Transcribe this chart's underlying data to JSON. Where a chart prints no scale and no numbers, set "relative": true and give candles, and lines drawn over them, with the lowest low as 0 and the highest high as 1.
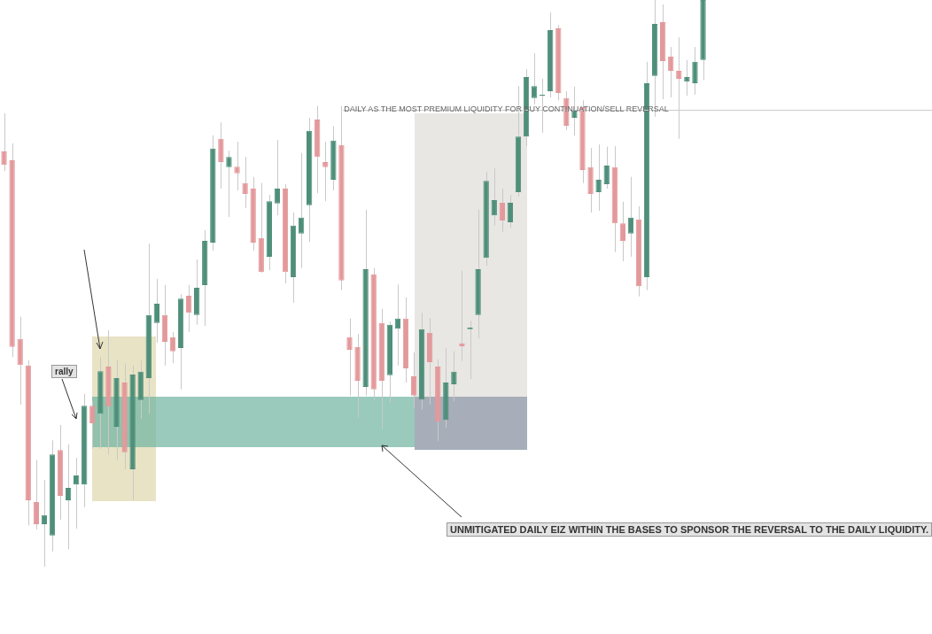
{
  "chart_data": {
    "type": "candlestick",
    "relative": true,
    "legend": false,
    "categories": [
      null,
      null,
      null,
      null,
      null,
      null,
      null,
      null,
      null,
      null,
      null,
      null,
      null,
      null,
      null,
      null,
      null,
      null,
      null,
      null,
      null,
      null,
      null,
      null,
      null,
      null,
      null,
      null,
      null,
      null,
      null,
      null,
      null,
      null,
      null,
      null,
      null,
      null,
      null,
      null,
      null,
      null,
      null,
      null,
      null,
      null,
      null,
      null,
      null,
      null,
      null,
      null,
      null,
      null,
      null,
      null,
      null,
      null,
      null,
      null,
      null,
      null,
      null,
      null,
      null,
      null,
      null,
      null,
      null,
      null,
      null,
      null,
      null,
      null,
      null,
      null,
      null,
      null,
      null,
      null,
      null,
      null,
      null,
      null,
      null,
      null,
      null,
      null,
      null,
      null,
      null,
      null,
      null,
      null,
      null,
      null,
      null,
      null,
      null,
      null,
      null,
      null,
      null,
      null,
      null,
      null,
      null,
      null,
      null,
      null,
      null,
      null,
      null,
      null,
      null,
      null
    ],
    "ohlc": [
      [
        0.733,
        0.8,
        0.698,
        0.709
      ],
      [
        0.717,
        0.747,
        0.37,
        0.388
      ],
      [
        0.402,
        0.441,
        0.286,
        0.356
      ],
      [
        0.355,
        0.364,
        0.073,
        0.117
      ],
      [
        0.114,
        0.188,
        0.066,
        0.075
      ],
      [
        0.075,
        0.153,
        0,
        0.091
      ],
      [
        0.055,
        0.223,
        0.027,
        0.198
      ],
      [
        0.206,
        0.25,
        0.083,
        0.125
      ],
      [
        0.117,
        0.216,
        0.031,
        0.139
      ],
      [
        0.145,
        0.192,
        0.067,
        0.161
      ],
      [
        0.145,
        0.305,
        0.105,
        0.284
      ],
      [
        0.284,
        0.292,
        0.208,
        0.253
      ],
      [
        0.27,
        0.37,
        0.208,
        0.345
      ],
      [
        0.353,
        0.417,
        0.198,
        0.283
      ],
      [
        0.247,
        0.364,
        0.188,
        0.333
      ],
      [
        0.325,
        0.359,
        0.172,
        0.202
      ],
      [
        0.172,
        0.355,
        0.117,
        0.339
      ],
      [
        0.294,
        0.364,
        0.261,
        0.344
      ],
      [
        0.333,
        0.57,
        0.27,
        0.444
      ],
      [
        0.43,
        0.508,
        0.395,
        0.464
      ],
      [
        0.444,
        0.497,
        0.355,
        0.397
      ],
      [
        0.405,
        0.414,
        0.359,
        0.38
      ],
      [
        0.386,
        0.481,
        0.313,
        0.473
      ],
      [
        0.478,
        0.497,
        0.414,
        0.448
      ],
      [
        0.444,
        0.542,
        0.427,
        0.492
      ],
      [
        0.497,
        0.594,
        0.425,
        0.575
      ],
      [
        0.572,
        0.761,
        0.558,
        0.738
      ],
      [
        0.755,
        0.784,
        0.667,
        0.714
      ],
      [
        0.705,
        0.734,
        0.617,
        0.723
      ],
      [
        0.706,
        0.75,
        0.664,
        0.694
      ],
      [
        0.677,
        0.723,
        0.633,
        0.658
      ],
      [
        0.667,
        0.688,
        0.558,
        0.572
      ],
      [
        0.58,
        0.677,
        0.519,
        0.52
      ],
      [
        0.547,
        0.656,
        0.523,
        0.645
      ],
      [
        0.641,
        0.753,
        0.62,
        0.667
      ],
      [
        0.667,
        0.675,
        0.5,
        0.52
      ],
      [
        0.511,
        0.625,
        0.466,
        0.602
      ],
      [
        0.588,
        0.73,
        0.527,
        0.616
      ],
      [
        0.638,
        0.792,
        0.573,
        0.769
      ],
      [
        0.789,
        0.813,
        0.659,
        0.723
      ],
      [
        0.714,
        0.75,
        0.645,
        0.705
      ],
      [
        0.683,
        0.777,
        0.664,
        0.752
      ],
      [
        0.744,
        0.813,
        0.488,
        0.505
      ],
      [
        0.405,
        0.438,
        0.302,
        0.383
      ],
      [
        0.388,
        0.411,
        0.263,
        0.328
      ],
      [
        0.317,
        0.63,
        0.302,
        0.525
      ],
      [
        0.516,
        0.527,
        0.294,
        0.313
      ],
      [
        0.43,
        0.455,
        0.242,
        0.328
      ],
      [
        0.338,
        0.433,
        0.289,
        0.427
      ],
      [
        0.42,
        0.498,
        0.355,
        0.438
      ],
      [
        0.438,
        0.475,
        0.325,
        0.35
      ],
      [
        0.336,
        0.378,
        0.281,
        0.302
      ],
      [
        0.295,
        0.448,
        0.277,
        0.419
      ],
      [
        0.413,
        0.439,
        0.286,
        0.361
      ],
      [
        0.353,
        0.366,
        0.222,
        0.256
      ],
      [
        0.259,
        0.386,
        0.245,
        0.325
      ],
      [
        0.322,
        0.38,
        0.292,
        0.344
      ],
      [
        0.394,
        0.522,
        0.363,
        0.389
      ],
      [
        0.419,
        0.434,
        0.331,
        0.422
      ],
      [
        0.444,
        0.63,
        0.403,
        0.525
      ],
      [
        0.545,
        0.697,
        0.531,
        0.681
      ],
      [
        0.62,
        0.703,
        0.602,
        0.647
      ],
      [
        0.642,
        0.667,
        0.591,
        0.611
      ],
      [
        0.608,
        0.656,
        0.598,
        0.642
      ],
      [
        0.661,
        0.848,
        0.653,
        0.759
      ],
      [
        0.759,
        0.878,
        0.742,
        0.864
      ],
      [
        0.827,
        0.906,
        0.816,
        0.848
      ],
      [
        0.831,
        0.861,
        0.766,
        0.833
      ],
      [
        0.839,
        0.978,
        0.828,
        0.947
      ],
      [
        0.95,
        0.956,
        0.823,
        0.836
      ],
      [
        0.827,
        0.839,
        0.77,
        0.778
      ],
      [
        0.792,
        0.847,
        0.761,
        0.806
      ],
      [
        0.811,
        0.823,
        0.677,
        0.7
      ],
      [
        0.705,
        0.739,
        0.625,
        0.658
      ],
      [
        0.661,
        0.745,
        0.628,
        0.683
      ],
      [
        0.675,
        0.741,
        0.667,
        0.708
      ],
      [
        0.705,
        0.742,
        0.555,
        0.606
      ],
      [
        0.606,
        0.644,
        0.539,
        0.575
      ],
      [
        0.588,
        0.688,
        0.547,
        0.616
      ],
      [
        0.613,
        0.636,
        0.477,
        0.495
      ],
      [
        0.511,
        0.891,
        0.488,
        0.853
      ],
      [
        0.866,
        1,
        0.794,
        0.958
      ],
      [
        0.961,
        0.992,
        0.825,
        0.892
      ],
      [
        0.9,
        0.917,
        0.828,
        0.875
      ],
      [
        0.875,
        0.934,
        0.755,
        0.861
      ],
      [
        0.856,
        0.894,
        0.831,
        0.864
      ],
      [
        0.853,
        0.917,
        0.833,
        0.891
      ],
      [
        0.894,
        1,
        0.859,
        1
      ],
      null,
      null,
      null,
      null,
      null,
      null,
      null,
      null,
      null,
      null,
      null,
      null,
      null,
      null,
      null,
      null,
      null,
      null,
      null,
      null,
      null,
      null,
      null,
      null,
      null,
      null,
      null,
      null
    ],
    "colors": [
      "#e3999b",
      "#e3999b",
      "#e3999b",
      "#e3999b",
      "#e3999b",
      "#4e8f7a",
      "#4e8f7a",
      "#e3999b",
      "#4e8f7a",
      "#4e8f7a",
      "#4e8f7a",
      "#e3999b",
      "#4e8f7a",
      "#e3999b",
      "#4e8f7a",
      "#e3999b",
      "#4e8f7a",
      "#4e8f7a",
      "#4e8f7a",
      "#4e8f7a",
      "#e3999b",
      "#e3999b",
      "#4e8f7a",
      "#e3999b",
      "#4e8f7a",
      "#4e8f7a",
      "#4e8f7a",
      "#e3999b",
      "#4e8f7a",
      "#e3999b",
      "#e3999b",
      "#e3999b",
      "#e3999b",
      "#4e8f7a",
      "#4e8f7a",
      "#e3999b",
      "#4e8f7a",
      "#4e8f7a",
      "#4e8f7a",
      "#e3999b",
      "#e3999b",
      "#4e8f7a",
      "#e3999b",
      "#e3999b",
      "#e3999b",
      "#4e8f7a",
      "#e3999b",
      "#e3999b",
      "#4e8f7a",
      "#4e8f7a",
      "#e3999b",
      "#e3999b",
      "#4e8f7a",
      "#e3999b",
      "#e3999b",
      "#4e8f7a",
      "#4e8f7a",
      "#e3999b",
      "#4e8f7a",
      "#4e8f7a",
      "#4e8f7a",
      "#4e8f7a",
      "#e3999b",
      "#4e8f7a",
      "#4e8f7a",
      "#4e8f7a",
      "#4e8f7a",
      "#4e8f7a",
      "#4e8f7a",
      "#e3999b",
      "#e3999b",
      "#4e8f7a",
      "#e3999b",
      "#e3999b",
      "#4e8f7a",
      "#4e8f7a",
      "#e3999b",
      "#e3999b",
      "#4e8f7a",
      "#e3999b",
      "#4e8f7a",
      "#4e8f7a",
      "#e3999b",
      "#e3999b",
      "#e3999b",
      "#4e8f7a",
      "#4e8f7a",
      "#4e8f7a",
      null,
      null,
      null,
      null,
      null,
      null,
      null,
      null,
      null,
      null,
      null,
      null,
      null,
      null,
      null,
      null,
      null,
      null,
      null,
      null,
      null,
      null,
      null,
      null,
      null,
      null,
      null,
      null
    ],
    "ref_lines": [
      {
        "axis": "y",
        "value": 0.806,
        "label": "DAILY AS THE MOST PREMIUM LIQUIDITY FOR BUY CONTINUATION/SELL REVERSAL",
        "color": "#cccccc"
      }
    ],
    "annotations": [
      "rally",
      "UNMITIGATED DAILY EIZ WITHIN THE BASES TO SPONSOR THE REVERSAL TO THE DAILY LIQUIDITY."
    ]
  }
}
